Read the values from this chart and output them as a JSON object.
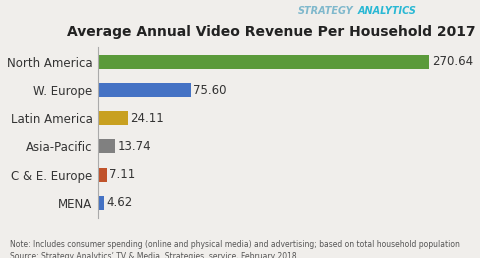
{
  "title": "Average Annual Video Revenue Per Household 2017 ($)",
  "categories": [
    "North America",
    "W. Europe",
    "Latin America",
    "Asia-Pacific",
    "C & E. Europe",
    "MENA"
  ],
  "values": [
    270.64,
    75.6,
    24.11,
    13.74,
    7.11,
    4.62
  ],
  "bar_colors": [
    "#5a9a3a",
    "#4472c4",
    "#c8a020",
    "#808080",
    "#c0522a",
    "#4472c4"
  ],
  "value_labels": [
    "270.64",
    "75.60",
    "24.11",
    "13.74",
    "7.11",
    "4.62"
  ],
  "background_color": "#f0eeeb",
  "title_fontsize": 10,
  "label_fontsize": 8.5,
  "value_fontsize": 8.5,
  "note_text1": "Note: Includes consumer spending (online and physical media) and advertising; based on total household population",
  "note_text2": "Source: Strategy Analytics’ TV & Media  Strategies  service, February 2018",
  "brand_strategy": "STRATEGY",
  "brand_analytics": "ANALYTICS",
  "brand_color_strategy": "#7aafca",
  "brand_color_analytics": "#3ec8e0",
  "xlim": [
    0,
    305
  ]
}
